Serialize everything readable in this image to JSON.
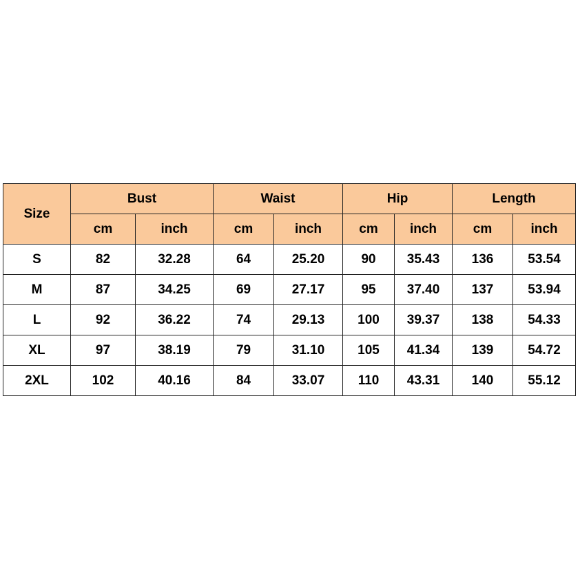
{
  "table": {
    "size_label": "Size",
    "groups": [
      {
        "label": "Bust",
        "units": [
          "cm",
          "inch"
        ]
      },
      {
        "label": "Waist",
        "units": [
          "cm",
          "inch"
        ]
      },
      {
        "label": "Hip",
        "units": [
          "cm",
          "inch"
        ]
      },
      {
        "label": "Length",
        "units": [
          "cm",
          "inch"
        ]
      }
    ],
    "rows": [
      [
        "S",
        "82",
        "32.28",
        "64",
        "25.20",
        "90",
        "35.43",
        "136",
        "53.54"
      ],
      [
        "M",
        "87",
        "34.25",
        "69",
        "27.17",
        "95",
        "37.40",
        "137",
        "53.94"
      ],
      [
        "L",
        "92",
        "36.22",
        "74",
        "29.13",
        "100",
        "39.37",
        "138",
        "54.33"
      ],
      [
        "XL",
        "97",
        "38.19",
        "79",
        "31.10",
        "105",
        "41.34",
        "139",
        "54.72"
      ],
      [
        "2XL",
        "102",
        "40.16",
        "84",
        "33.07",
        "110",
        "43.31",
        "140",
        "55.12"
      ]
    ]
  }
}
